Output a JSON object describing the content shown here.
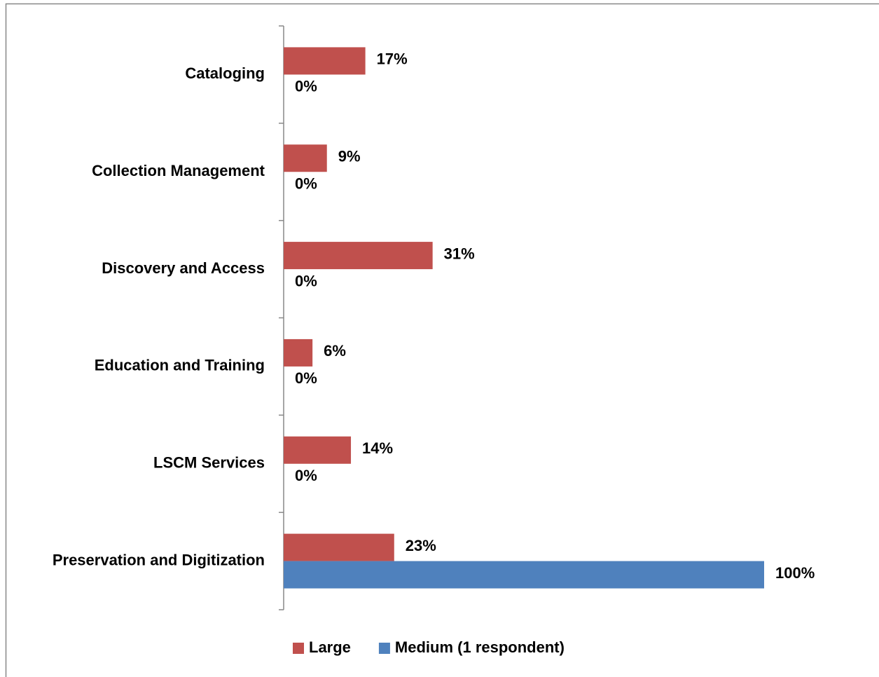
{
  "chart_data": {
    "type": "hbar",
    "categories": [
      "Cataloging",
      "Collection Management",
      "Discovery and Access",
      "Education and Training",
      "LSCM Services",
      "Preservation and Digitization"
    ],
    "series": [
      {
        "name": "Large",
        "color": "#c0504d",
        "values": [
          17,
          9,
          31,
          6,
          14,
          23
        ],
        "value_labels": [
          "17%",
          "9%",
          "31%",
          "6%",
          "14%",
          "23%"
        ]
      },
      {
        "name": "Medium (1 respondent)",
        "color": "#4f81bd",
        "values": [
          0,
          0,
          0,
          0,
          0,
          100
        ],
        "value_labels": [
          "0%",
          "0%",
          "0%",
          "0%",
          "0%",
          "100%"
        ]
      }
    ],
    "xlim": [
      0,
      100
    ],
    "legend": "bottom"
  }
}
